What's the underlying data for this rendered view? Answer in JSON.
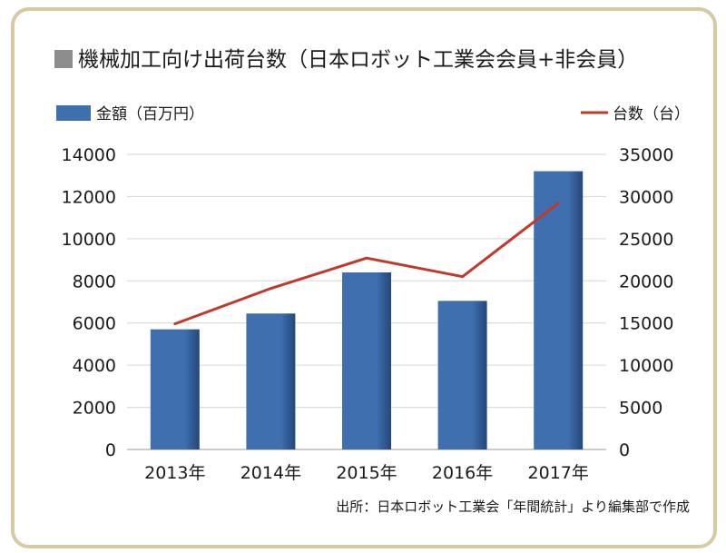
{
  "chart_data": {
    "type": "bar",
    "title": "機械加工向け出荷台数（日本ロボット工業会会員+非会員）",
    "categories": [
      "2013年",
      "2014年",
      "2015年",
      "2016年",
      "2017年"
    ],
    "series": [
      {
        "name": "金額（百万円）",
        "type": "bar",
        "axis": "left",
        "color": "#3f6fae",
        "values": [
          5700,
          6450,
          8400,
          7050,
          13200
        ]
      },
      {
        "name": "台数（台）",
        "type": "line",
        "axis": "right",
        "color": "#c0392b",
        "values": [
          14900,
          19100,
          22700,
          20500,
          29200
        ]
      }
    ],
    "y_left": {
      "min": 0,
      "max": 14000,
      "ticks": [
        "0",
        "2000",
        "4000",
        "6000",
        "8000",
        "10000",
        "12000",
        "14000"
      ]
    },
    "y_right": {
      "min": 0,
      "max": 35000,
      "ticks": [
        "0",
        "5000",
        "10000",
        "15000",
        "20000",
        "25000",
        "30000",
        "35000"
      ]
    },
    "grid": true,
    "legend": "top",
    "title_marker_color": "#8c8c8c",
    "source": "出所：日本ロボット工業会「年間統計」より編集部で作成"
  }
}
